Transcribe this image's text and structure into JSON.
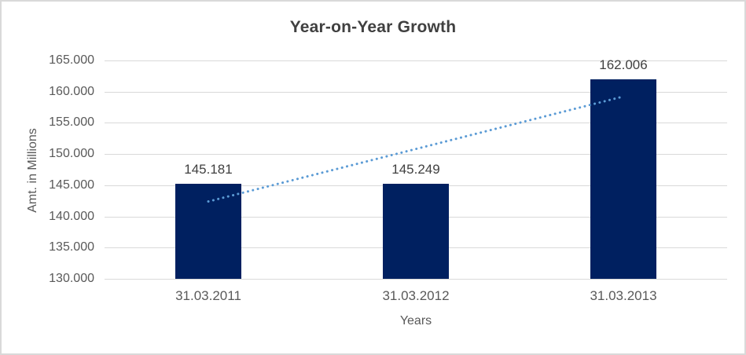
{
  "chart_data": {
    "type": "bar",
    "title": "Year-on-Year Growth",
    "xlabel": "Years",
    "ylabel": "Amt. in Millions",
    "categories": [
      "31.03.2011",
      "31.03.2012",
      "31.03.2013"
    ],
    "values": [
      145181,
      145249,
      162006
    ],
    "value_labels": [
      "145.181",
      "145.249",
      "162.006"
    ],
    "ylim": [
      130000,
      165000
    ],
    "yticks": [
      {
        "value": 130000,
        "label": "130.000"
      },
      {
        "value": 135000,
        "label": "135.000"
      },
      {
        "value": 140000,
        "label": "140.000"
      },
      {
        "value": 145000,
        "label": "145.000"
      },
      {
        "value": 150000,
        "label": "150.000"
      },
      {
        "value": 155000,
        "label": "155.000"
      },
      {
        "value": 160000,
        "label": "160.000"
      },
      {
        "value": 165000,
        "label": "165.000"
      }
    ],
    "grid": true,
    "legend": "none",
    "bar_color": "#002060",
    "trendline": {
      "type": "linear",
      "line_style": "dotted",
      "color": "#5B9BD5"
    },
    "colors": {
      "title_text": "#404040",
      "axis_text": "#595959",
      "data_label_text": "#404040",
      "gridline": "#d9d9d9",
      "chart_border": "#d9d9d9",
      "background": "#ffffff"
    }
  }
}
